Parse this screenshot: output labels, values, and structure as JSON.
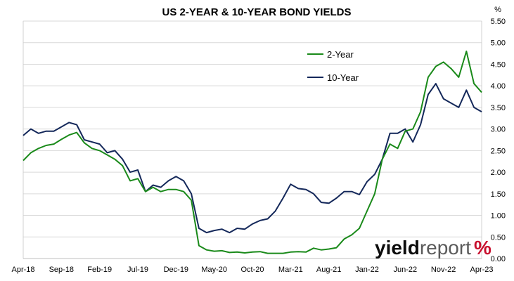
{
  "chart_data": {
    "type": "line",
    "title": "US 2-YEAR & 10-YEAR BOND YIELDS",
    "y_unit": "%",
    "ylim": [
      0,
      5.5
    ],
    "y_ticks": [
      "0.00",
      "0.50",
      "1.00",
      "1.50",
      "2.00",
      "2.50",
      "3.00",
      "3.50",
      "4.00",
      "4.50",
      "5.00",
      "5.50"
    ],
    "x_ticks": [
      "Apr-18",
      "Sep-18",
      "Feb-19",
      "Jul-19",
      "Dec-19",
      "May-20",
      "Oct-20",
      "Mar-21",
      "Aug-21",
      "Jan-22",
      "Jun-22",
      "Nov-22",
      "Apr-23"
    ],
    "grid": "horizontal",
    "legend": "top-center",
    "x": [
      "2018-04",
      "2018-05",
      "2018-06",
      "2018-07",
      "2018-08",
      "2018-09",
      "2018-10",
      "2018-11",
      "2018-12",
      "2019-01",
      "2019-02",
      "2019-03",
      "2019-04",
      "2019-05",
      "2019-06",
      "2019-07",
      "2019-08",
      "2019-09",
      "2019-10",
      "2019-11",
      "2019-12",
      "2020-01",
      "2020-02",
      "2020-03",
      "2020-04",
      "2020-05",
      "2020-06",
      "2020-07",
      "2020-08",
      "2020-09",
      "2020-10",
      "2020-11",
      "2020-12",
      "2021-01",
      "2021-02",
      "2021-03",
      "2021-04",
      "2021-05",
      "2021-06",
      "2021-07",
      "2021-08",
      "2021-09",
      "2021-10",
      "2021-11",
      "2021-12",
      "2022-01",
      "2022-02",
      "2022-03",
      "2022-04",
      "2022-05",
      "2022-06",
      "2022-07",
      "2022-08",
      "2022-09",
      "2022-10",
      "2022-11",
      "2022-12",
      "2023-01",
      "2023-02",
      "2023-03",
      "2023-04"
    ],
    "series": [
      {
        "name": "2-Year",
        "color": "#1a8a1a",
        "values": [
          2.27,
          2.45,
          2.55,
          2.62,
          2.65,
          2.76,
          2.86,
          2.92,
          2.68,
          2.55,
          2.5,
          2.4,
          2.3,
          2.15,
          1.8,
          1.85,
          1.55,
          1.65,
          1.55,
          1.6,
          1.6,
          1.55,
          1.35,
          0.3,
          0.2,
          0.17,
          0.18,
          0.14,
          0.15,
          0.13,
          0.15,
          0.16,
          0.12,
          0.12,
          0.12,
          0.15,
          0.16,
          0.15,
          0.24,
          0.2,
          0.22,
          0.25,
          0.45,
          0.55,
          0.7,
          1.1,
          1.5,
          2.3,
          2.65,
          2.55,
          2.95,
          3.0,
          3.4,
          4.2,
          4.45,
          4.55,
          4.4,
          4.2,
          4.8,
          4.05,
          3.85
        ]
      },
      {
        "name": "10-Year",
        "color": "#14285a",
        "values": [
          2.85,
          3.0,
          2.9,
          2.95,
          2.95,
          3.05,
          3.15,
          3.1,
          2.75,
          2.7,
          2.65,
          2.45,
          2.5,
          2.3,
          2.0,
          2.05,
          1.55,
          1.7,
          1.65,
          1.8,
          1.9,
          1.8,
          1.5,
          0.7,
          0.6,
          0.65,
          0.68,
          0.6,
          0.7,
          0.68,
          0.8,
          0.88,
          0.92,
          1.1,
          1.4,
          1.72,
          1.62,
          1.6,
          1.5,
          1.3,
          1.28,
          1.4,
          1.55,
          1.55,
          1.48,
          1.78,
          1.95,
          2.3,
          2.9,
          2.9,
          3.0,
          2.7,
          3.1,
          3.8,
          4.05,
          3.7,
          3.6,
          3.5,
          3.9,
          3.5,
          3.4
        ]
      }
    ]
  },
  "branding": {
    "yield": "yield",
    "report": "report",
    "pct": "%"
  }
}
